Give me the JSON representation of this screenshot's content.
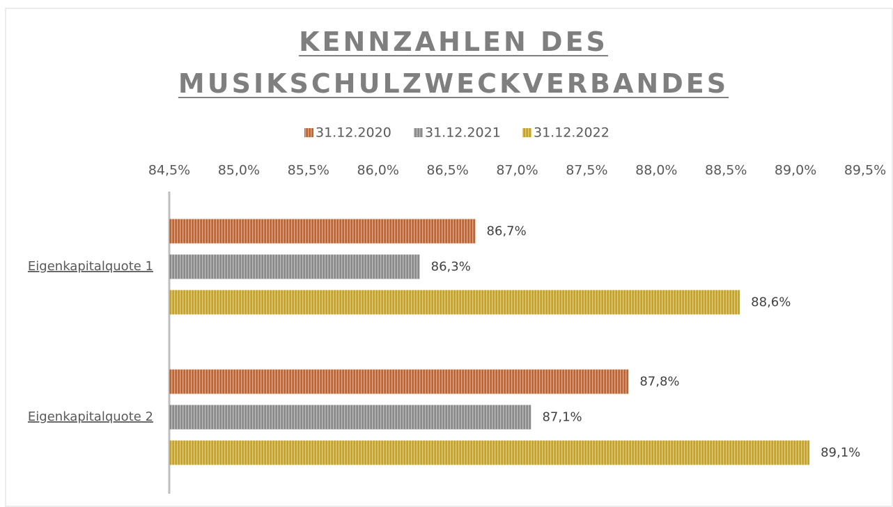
{
  "chart_data": {
    "type": "bar",
    "orientation": "horizontal",
    "title": "KENNZAHLEN DES MUSIKSCHULZWECKVERBANDES",
    "categories": [
      "Eigenkapitalquote 1",
      "Eigenkapitalquote 2"
    ],
    "series": [
      {
        "name": "31.12.2020",
        "color": "#c5632e",
        "values": [
          86.7,
          87.8
        ],
        "value_labels": [
          "86,7%",
          "87,8%"
        ]
      },
      {
        "name": "31.12.2021",
        "color": "#8a8a8a",
        "values": [
          86.3,
          87.1
        ],
        "value_labels": [
          "86,3%",
          "87,1%"
        ]
      },
      {
        "name": "31.12.2022",
        "color": "#c9a21e",
        "values": [
          88.6,
          89.1
        ],
        "value_labels": [
          "88,6%",
          "89,1%"
        ]
      }
    ],
    "xlim": [
      84.5,
      89.5
    ],
    "xticks": [
      {
        "value": 84.5,
        "label": "84,5%"
      },
      {
        "value": 85.0,
        "label": "85,0%"
      },
      {
        "value": 85.5,
        "label": "85,5%"
      },
      {
        "value": 86.0,
        "label": "86,0%"
      },
      {
        "value": 86.5,
        "label": "86,5%"
      },
      {
        "value": 87.0,
        "label": "87,0%"
      },
      {
        "value": 87.5,
        "label": "87,5%"
      },
      {
        "value": 88.0,
        "label": "88,0%"
      },
      {
        "value": 88.5,
        "label": "88,5%"
      },
      {
        "value": 89.0,
        "label": "89,0%"
      },
      {
        "value": 89.5,
        "label": "89,5%"
      }
    ],
    "legend": "top",
    "grid": false
  }
}
